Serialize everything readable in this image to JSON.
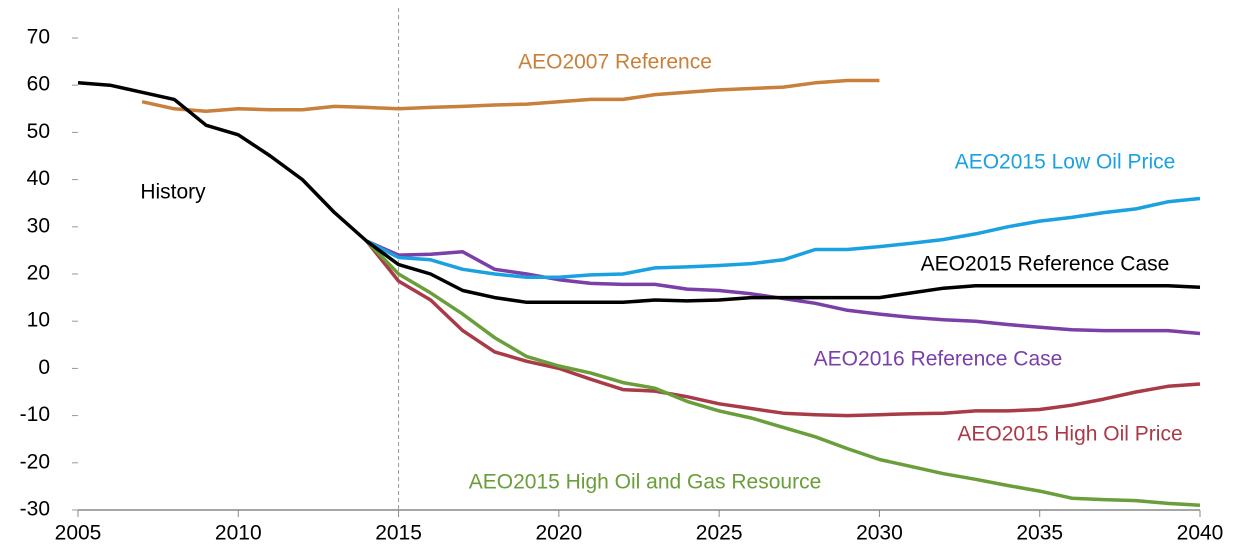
{
  "chart_data": {
    "type": "line",
    "x": [
      2005,
      2006,
      2007,
      2008,
      2009,
      2010,
      2011,
      2012,
      2013,
      2014,
      2015,
      2016,
      2017,
      2018,
      2019,
      2020,
      2021,
      2022,
      2023,
      2024,
      2025,
      2026,
      2027,
      2028,
      2029,
      2030,
      2031,
      2032,
      2033,
      2034,
      2035,
      2036,
      2037,
      2038,
      2039,
      2040
    ],
    "series": [
      {
        "name": "AEO2007 Reference",
        "color": "#c8803a",
        "values": [
          null,
          null,
          56.5,
          55,
          54.5,
          55,
          54.8,
          54.8,
          55.5,
          55.3,
          55,
          55.3,
          55.5,
          55.8,
          56,
          56.5,
          57,
          57,
          58,
          58.5,
          59,
          59.3,
          59.6,
          60.5,
          61,
          61,
          null,
          null,
          null,
          null,
          null,
          null,
          null,
          null,
          null,
          null
        ]
      },
      {
        "name": "AEO2016 Reference Case",
        "color": "#7b3fa8",
        "values": [
          null,
          null,
          null,
          null,
          null,
          null,
          null,
          null,
          null,
          27,
          24,
          24.2,
          24.7,
          21,
          20,
          18.8,
          18,
          17.8,
          17.8,
          16.8,
          16.5,
          15.8,
          14.8,
          13.8,
          12.3,
          11.5,
          10.8,
          10.3,
          10,
          9.3,
          8.7,
          8.2,
          8,
          8,
          8,
          7.4
        ]
      },
      {
        "name": "AEO2015 Low Oil Price",
        "color": "#1ba1e2",
        "values": [
          null,
          null,
          null,
          null,
          null,
          null,
          null,
          null,
          null,
          27,
          23.5,
          23,
          21,
          20,
          19.3,
          19.3,
          19.8,
          20,
          21.3,
          21.5,
          21.8,
          22.2,
          23,
          25.2,
          25.2,
          25.8,
          26.5,
          27.3,
          28.5,
          30,
          31.2,
          32,
          33,
          33.8,
          35.3,
          36
        ]
      },
      {
        "name": "AEO2015 High Oil Price",
        "color": "#a93a48",
        "values": [
          null,
          null,
          null,
          null,
          null,
          null,
          null,
          null,
          null,
          27,
          18.5,
          14.5,
          8,
          3.5,
          1.5,
          0,
          -2.3,
          -4.5,
          -4.8,
          -6,
          -7.5,
          -8.5,
          -9.5,
          -9.8,
          -10,
          -9.8,
          -9.6,
          -9.5,
          -9,
          -9,
          -8.7,
          -7.8,
          -6.5,
          -5,
          -3.8,
          -3.3
        ]
      },
      {
        "name": "AEO2015 High Oil and Gas Resource",
        "color": "#6a9e3a",
        "values": [
          null,
          null,
          null,
          null,
          null,
          null,
          null,
          null,
          null,
          27,
          20,
          16,
          11.5,
          6.5,
          2.5,
          0.5,
          -1,
          -3,
          -4.2,
          -7,
          -9,
          -10.5,
          -12.5,
          -14.5,
          -17,
          -19.3,
          -20.8,
          -22.3,
          -23.5,
          -24.8,
          -26,
          -27.5,
          -27.8,
          -28,
          -28.6,
          -29
        ]
      },
      {
        "name": "AEO2015 Reference Case",
        "color": "#000000",
        "values": [
          60.5,
          60,
          58.5,
          57,
          51.5,
          49.5,
          45,
          40,
          33,
          27,
          22,
          20,
          16.5,
          15,
          14,
          14,
          14,
          14,
          14.5,
          14.3,
          14.5,
          15,
          15,
          15,
          15,
          15,
          16,
          17,
          17.5,
          17.5,
          17.5,
          17.5,
          17.5,
          17.5,
          17.5,
          17.2
        ]
      }
    ],
    "annotations": [
      {
        "text": "History"
      }
    ],
    "vline": 2015,
    "xlim": [
      2005,
      2040
    ],
    "xticks": [
      2005,
      2010,
      2015,
      2020,
      2025,
      2030,
      2035,
      2040
    ],
    "ylim": [
      -30,
      70
    ],
    "yticks": [
      -30,
      -20,
      -10,
      0,
      10,
      20,
      30,
      40,
      50,
      60,
      70
    ],
    "grid": false
  }
}
